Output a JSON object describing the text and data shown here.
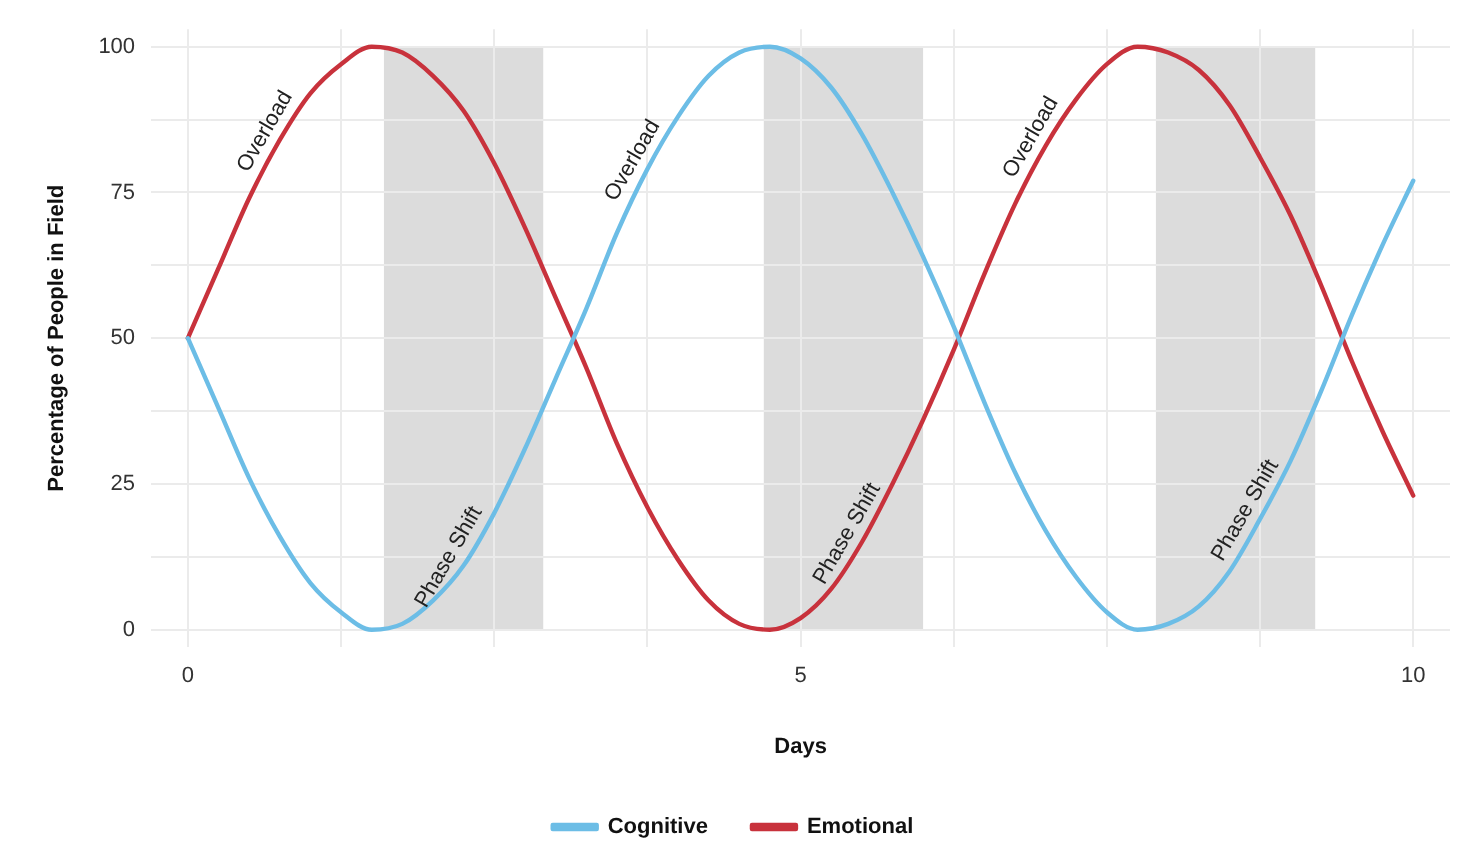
{
  "chart_data": {
    "type": "line",
    "xlabel": "Days",
    "ylabel": "Percentage of People in Field",
    "x": [
      0,
      0.25,
      0.5,
      0.75,
      1,
      1.25,
      1.5,
      1.75,
      2,
      2.25,
      2.5,
      2.75,
      3,
      3.25,
      3.5,
      3.75,
      4,
      4.25,
      4.5,
      4.75,
      5,
      5.25,
      5.5,
      5.75,
      6,
      6.25,
      6.5,
      6.75,
      7,
      7.25,
      7.5,
      7.75,
      8,
      8.25,
      8.5,
      8.75,
      9,
      9.25,
      9.5,
      9.75,
      10
    ],
    "series": [
      {
        "name": "Cognitive",
        "color": "#6cbde6",
        "values": [
          50,
          38,
          26,
          16,
          8,
          3,
          0,
          1,
          5,
          11,
          20,
          31,
          43,
          55,
          68,
          79,
          88,
          95,
          99,
          100,
          98,
          93,
          85,
          75,
          64,
          52,
          39,
          27,
          17,
          9,
          3,
          0,
          1,
          4,
          10,
          19,
          29,
          41,
          54,
          66,
          77
        ]
      },
      {
        "name": "Emotional",
        "color": "#c8323c",
        "values": [
          50,
          62,
          74,
          84,
          92,
          97,
          100,
          99,
          95,
          89,
          80,
          69,
          57,
          45,
          32,
          21,
          12,
          5,
          1,
          0,
          2,
          7,
          15,
          25,
          36,
          48,
          61,
          73,
          83,
          91,
          97,
          100,
          99,
          96,
          90,
          81,
          71,
          59,
          46,
          34,
          23
        ]
      }
    ],
    "xlim": [
      -0.3,
      10.3
    ],
    "ylim": [
      -3,
      103
    ],
    "xticks": [
      0,
      {
        "value": 1.25,
        "label": null
      },
      {
        "value": 2.5,
        "label": null
      },
      {
        "value": 3.75,
        "label": null
      },
      5,
      {
        "value": 6.25,
        "label": null
      },
      {
        "value": 7.5,
        "label": null
      },
      {
        "value": 8.75,
        "label": null
      },
      10
    ],
    "yticks": [
      0,
      {
        "value": 12.5,
        "label": null
      },
      25,
      {
        "value": 37.5,
        "label": null
      },
      50,
      {
        "value": 62.5,
        "label": null
      },
      75,
      {
        "value": 87.5,
        "label": null
      },
      100
    ],
    "bands": [
      {
        "axis": "x",
        "from": 1.6,
        "to": 2.9,
        "color": "#dcdcdc"
      },
      {
        "axis": "x",
        "from": 4.7,
        "to": 6.0,
        "color": "#dcdcdc"
      },
      {
        "axis": "x",
        "from": 7.9,
        "to": 9.2,
        "color": "#dcdcdc"
      }
    ],
    "annotations": [
      {
        "text": "Overload",
        "x": 0.75,
        "y": 84
      },
      {
        "text": "Overload",
        "x": 3.75,
        "y": 79
      },
      {
        "text": "Overload",
        "x": 7,
        "y": 83
      },
      {
        "text": "Phase Shift",
        "x": 2.25,
        "y": 11
      },
      {
        "text": "Phase Shift",
        "x": 5.5,
        "y": 15
      },
      {
        "text": "Phase Shift",
        "x": 8.75,
        "y": 19
      }
    ],
    "grid": true,
    "legend": "bottom",
    "line_style": "solid",
    "marker": "none"
  }
}
